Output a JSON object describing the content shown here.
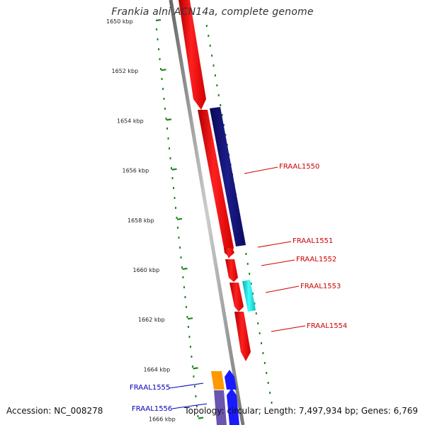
{
  "title": "Frankia alni ACN14a, complete genome",
  "footer": {
    "accession": "Accession: NC_008278",
    "summary": "Topology: circular; Length: 7,497,934 bp; Genes: 6,769"
  },
  "colors": {
    "forward_red": "#ff1010",
    "reverse_navy": "#10107a",
    "cyan": "#22dddd",
    "orange": "#ff9900",
    "blue": "#1a1aff",
    "purple": "#6a55b0",
    "label_red": "#cc0000",
    "label_blue": "#0000bb",
    "ticks": "#228822",
    "backbone": "#888888"
  },
  "axis": {
    "ticks": [
      {
        "label": "1650 kbp"
      },
      {
        "label": "1652 kbp"
      },
      {
        "label": "1654 kbp"
      },
      {
        "label": "1656 kbp"
      },
      {
        "label": "1658 kbp"
      },
      {
        "label": "1660 kbp"
      },
      {
        "label": "1662 kbp"
      },
      {
        "label": "1664 kbp"
      },
      {
        "label": "1666 kbp"
      }
    ]
  },
  "genes": [
    {
      "id": "FRAAL1550",
      "label": "FRAAL1550",
      "color": "reverse_navy"
    },
    {
      "id": "FRAAL1551",
      "label": "FRAAL1551",
      "color": "forward_red"
    },
    {
      "id": "FRAAL1552",
      "label": "FRAAL1552",
      "color": "forward_red"
    },
    {
      "id": "FRAAL1553",
      "label": "FRAAL1553",
      "color": "cyan"
    },
    {
      "id": "FRAAL1554",
      "label": "FRAAL1554",
      "color": "forward_red"
    },
    {
      "id": "FRAAL1555",
      "label": "FRAAL1555",
      "color": "orange"
    },
    {
      "id": "FRAAL1556",
      "label": "FRAAL1556",
      "color": "blue"
    }
  ]
}
